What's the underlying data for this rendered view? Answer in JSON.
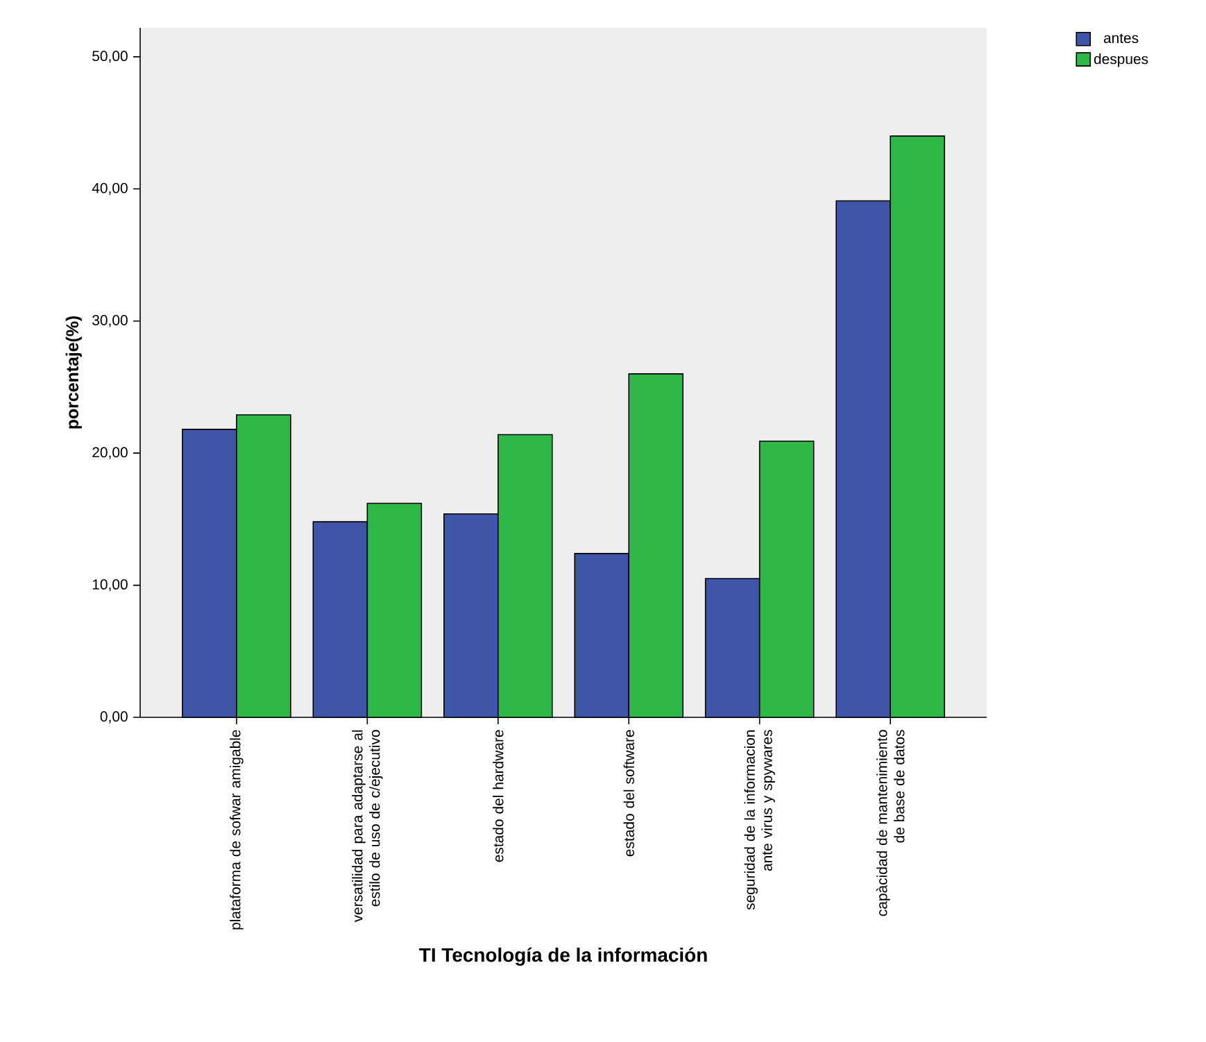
{
  "chart_data": {
    "type": "bar",
    "xlabel": "TI Tecnología de la información",
    "ylabel": "porcentaje(%)",
    "categories": [
      "plataforma de sofwar amigable",
      "versatilidad para adaptarse al estilo de uso de c/ejecutivo",
      "estado del hardware",
      "estado del software",
      "seguridad de la informacion ante virus y spywares",
      "capàcidad de mantenimiento de base de datos"
    ],
    "series": [
      {
        "name": "antes",
        "color": "#3f56a8",
        "values": [
          21.8,
          14.8,
          15.4,
          12.4,
          10.5,
          39.1
        ]
      },
      {
        "name": "despues",
        "color": "#2fb847",
        "values": [
          22.9,
          16.2,
          21.4,
          26.0,
          20.9,
          44.0
        ]
      }
    ],
    "ylim": [
      0,
      52.2
    ],
    "yticks": [
      {
        "value": 0,
        "label": "0,00"
      },
      {
        "value": 10,
        "label": "10,00"
      },
      {
        "value": 20,
        "label": "20,00"
      },
      {
        "value": 30,
        "label": "30,00"
      },
      {
        "value": 40,
        "label": "40,00"
      },
      {
        "value": 50,
        "label": "50,00"
      }
    ],
    "legend": "top right"
  }
}
